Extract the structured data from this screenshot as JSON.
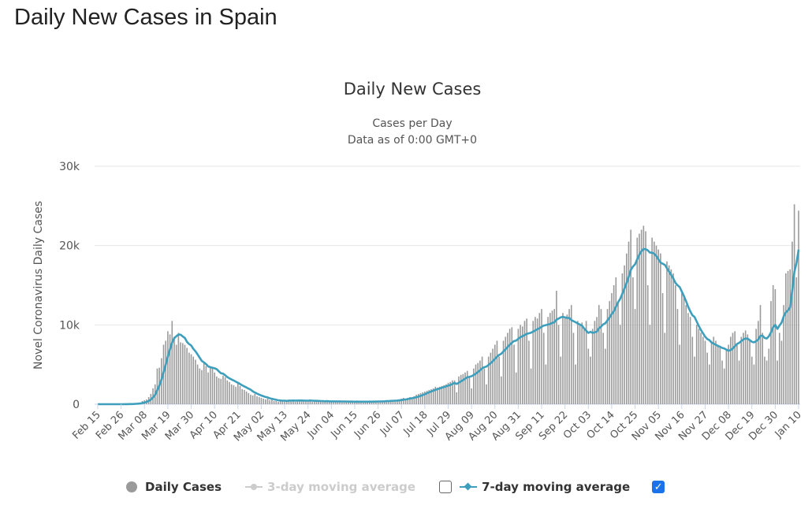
{
  "page": {
    "title": "Daily New Cases in Spain"
  },
  "chart_data": {
    "type": "bar",
    "title": "Daily New Cases",
    "subtitle_lines": [
      "Cases per Day",
      "Data as of 0:00 GMT+0"
    ],
    "ylabel": "Novel Coronavirus Daily Cases",
    "xlabel": "",
    "ylim": [
      0,
      30000
    ],
    "y_ticks": [
      0,
      10000,
      20000,
      30000
    ],
    "y_tick_labels": [
      "0",
      "10k",
      "20k",
      "30k"
    ],
    "x_start_date": "2020-02-15",
    "x_end_date": "2021-01-10",
    "x_tick_labels": [
      "Feb 15",
      "Feb 26",
      "Mar 08",
      "Mar 19",
      "Mar 30",
      "Apr 10",
      "Apr 21",
      "May 02",
      "May 13",
      "May 24",
      "Jun 04",
      "Jun 15",
      "Jun 26",
      "Jul 07",
      "Jul 18",
      "Jul 29",
      "Aug 09",
      "Aug 20",
      "Aug 31",
      "Sep 11",
      "Sep 22",
      "Oct 03",
      "Oct 14",
      "Oct 25",
      "Nov 05",
      "Nov 16",
      "Nov 27",
      "Dec 08",
      "Dec 19",
      "Dec 30",
      "Jan 10"
    ],
    "grid": true,
    "legend_position": "bottom",
    "colors": {
      "daily": "#9a9a9a",
      "ma3": "#cccccc",
      "ma7": "#3e9fbd",
      "grid": "#e6e6e6",
      "checkbox": "#1a73e8"
    },
    "series": [
      {
        "name": "Daily Cases",
        "type": "bar",
        "visible": true,
        "values": [
          0,
          0,
          0,
          0,
          0,
          0,
          0,
          0,
          0,
          1,
          3,
          6,
          10,
          20,
          30,
          40,
          50,
          80,
          100,
          150,
          200,
          400,
          500,
          600,
          900,
          1300,
          2000,
          2500,
          4500,
          4600,
          5800,
          7500,
          8000,
          9200,
          8800,
          10500,
          8500,
          7500,
          9000,
          7800,
          7700,
          7500,
          7100,
          6500,
          6300,
          6000,
          5600,
          5000,
          4500,
          4300,
          5200,
          4800,
          4000,
          4800,
          4600,
          4000,
          3500,
          3300,
          3200,
          3600,
          3400,
          3000,
          2800,
          2500,
          2400,
          2200,
          2600,
          2300,
          1900,
          1800,
          1600,
          1400,
          1200,
          1100,
          1300,
          1000,
          900,
          800,
          700,
          600,
          700,
          500,
          600,
          400,
          400,
          300,
          400,
          500,
          500,
          400,
          600,
          500,
          400,
          300,
          500,
          600,
          400,
          500,
          400,
          400,
          500,
          300,
          500,
          400,
          400,
          300,
          400,
          300,
          400,
          400,
          300,
          400,
          300,
          300,
          400,
          300,
          400,
          300,
          300,
          300,
          300,
          300,
          400,
          300,
          300,
          300,
          300,
          300,
          400,
          300,
          400,
          300,
          400,
          300,
          400,
          400,
          500,
          400,
          500,
          500,
          400,
          500,
          600,
          700,
          800,
          700,
          800,
          900,
          800,
          1000,
          1200,
          1300,
          1400,
          1500,
          1600,
          1700,
          1800,
          1900,
          2000,
          2200,
          2100,
          2200,
          2300,
          2400,
          2500,
          2700,
          2800,
          3000,
          3000,
          1500,
          3500,
          3700,
          3800,
          4000,
          4200,
          3500,
          2000,
          4500,
          5000,
          5200,
          5500,
          6000,
          4500,
          2500,
          6000,
          6500,
          7000,
          7500,
          8000,
          6000,
          3500,
          8000,
          8500,
          9000,
          9500,
          9700,
          7500,
          4000,
          9500,
          10000,
          9800,
          10500,
          10800,
          8000,
          4500,
          10500,
          11000,
          10800,
          11500,
          12000,
          9000,
          5000,
          11000,
          11500,
          11800,
          12000,
          14300,
          10000,
          6000,
          11500,
          11000,
          11300,
          12000,
          12500,
          9000,
          5000,
          10500,
          10000,
          10300,
          9600,
          10500,
          7000,
          6000,
          9500,
          10500,
          11000,
          12500,
          12000,
          9000,
          7000,
          12000,
          13000,
          14000,
          15000,
          16000,
          13000,
          10000,
          16500,
          17500,
          19000,
          20500,
          22000,
          16000,
          12000,
          21000,
          21500,
          22000,
          22500,
          21800,
          15000,
          10000,
          21000,
          20500,
          20000,
          19500,
          19000,
          14000,
          9000,
          18000,
          17500,
          17000,
          16500,
          15000,
          12000,
          7500,
          14000,
          13500,
          12500,
          11500,
          11000,
          8500,
          6000,
          10000,
          9500,
          9000,
          8500,
          8000,
          6500,
          5000,
          8000,
          8500,
          8000,
          7500,
          7200,
          5500,
          4500,
          7000,
          7500,
          8500,
          9000,
          9200,
          7500,
          5500,
          8500,
          9000,
          9300,
          8800,
          8000,
          6000,
          5000,
          9500,
          10500,
          12500,
          9000,
          6000,
          5500,
          7000,
          13000,
          15000,
          14500,
          5500,
          9000,
          8000,
          12500,
          16500,
          16800,
          17000,
          20500,
          25200,
          16000,
          24400
        ]
      },
      {
        "name": "3-day moving average",
        "type": "line",
        "visible": false
      },
      {
        "name": "7-day moving average",
        "type": "line",
        "visible": true
      }
    ]
  },
  "legend": {
    "items": [
      {
        "label": "Daily Cases"
      },
      {
        "label": "3-day moving average",
        "checked": false
      },
      {
        "label": "7-day moving average",
        "checked": true
      }
    ],
    "check_mark": "✓"
  }
}
